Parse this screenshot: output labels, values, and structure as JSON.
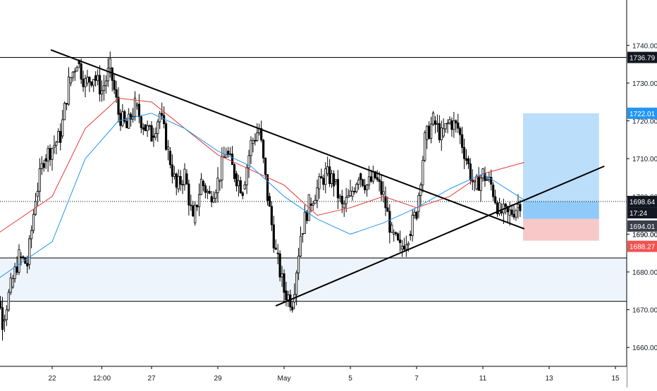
{
  "colors": {
    "up": "#26a69a",
    "candle": "#000000",
    "ma_red": "#e53935",
    "ma_blue": "#2196f3",
    "zone_fill": "#eef4fb",
    "target_fill": "#bbdefb",
    "stop_fill": "#f8c8c8",
    "entry_fill": "#90caf9",
    "price_blue": "#2196f3",
    "price_red": "#ef5350",
    "price_dark": "#131722",
    "price_grey": "#3a3e4a"
  },
  "chart_data": {
    "type": "candlestick",
    "title": "",
    "y_range": [
      1655,
      1752
    ],
    "y_ticks": [
      "1740.00",
      "1730.00",
      "1720.00",
      "1710.00",
      "1700.00",
      "1690.00",
      "1680.00",
      "1670.00",
      "1660.00"
    ],
    "x_ticks": [
      "22",
      "12:00",
      "27",
      "29",
      "May",
      "5",
      "7",
      "11",
      "13",
      "15"
    ],
    "horizontal_levels": [
      1736.79,
      1683.7,
      1672.2
    ],
    "support_zone": [
      1672.2,
      1683.7
    ],
    "dotted_level": 1698.64,
    "trendlines": [
      {
        "name": "descending",
        "from": [
          "Apr 21 23:00",
          1738.8
        ],
        "to": [
          "May 12 06:00",
          1691.4
        ]
      },
      {
        "name": "ascending",
        "from": [
          "Apr 30 18:00",
          1671.0
        ],
        "to": [
          "May 14 16:00",
          1708.0
        ]
      }
    ],
    "position": {
      "type": "long",
      "entry": 1694.01,
      "target": 1722.01,
      "stop": 1688.27,
      "current": 1698.64
    },
    "price_labels": [
      {
        "value": "1736.79",
        "style": "dark"
      },
      {
        "value": "1722.01",
        "style": "blue"
      },
      {
        "value": "1698.64",
        "style": "dark"
      },
      {
        "value": "17:24",
        "style": "dark"
      },
      {
        "value": "1694.01",
        "style": "grey"
      },
      {
        "value": "1688.27",
        "style": "red"
      }
    ],
    "hidden_label": "1690.00",
    "x_range": [
      "Apr 20 00:00",
      "May 15 20:00"
    ],
    "series_close_points": [
      [
        "Apr 20 00:00",
        1693
      ],
      [
        "Apr 20 06:00",
        1680
      ],
      [
        "Apr 20 12:00",
        1667
      ],
      [
        "Apr 20 18:00",
        1676
      ],
      [
        "Apr 21 00:00",
        1684
      ],
      [
        "Apr 21 06:00",
        1682
      ],
      [
        "Apr 21 12:00",
        1700
      ],
      [
        "Apr 21 18:00",
        1710
      ],
      [
        "Apr 22 00:00",
        1713
      ],
      [
        "Apr 22 06:00",
        1716
      ],
      [
        "Apr 22 12:00",
        1730
      ],
      [
        "Apr 22 18:00",
        1736
      ],
      [
        "Apr 23 00:00",
        1730
      ],
      [
        "Apr 23 06:00",
        1732
      ],
      [
        "Apr 23 12:00",
        1728
      ],
      [
        "Apr 23 18:00",
        1734
      ],
      [
        "Apr 24 00:00",
        1722
      ],
      [
        "Apr 24 06:00",
        1718
      ],
      [
        "Apr 24 12:00",
        1724
      ],
      [
        "Apr 24 18:00",
        1719
      ],
      [
        "Apr 27 00:00",
        1716
      ],
      [
        "Apr 27 06:00",
        1722
      ],
      [
        "Apr 27 12:00",
        1712
      ],
      [
        "Apr 27 18:00",
        1702
      ],
      [
        "Apr 28 00:00",
        1706
      ],
      [
        "Apr 28 06:00",
        1693
      ],
      [
        "Apr 28 12:00",
        1704
      ],
      [
        "Apr 28 18:00",
        1700
      ],
      [
        "Apr 29 00:00",
        1704
      ],
      [
        "Apr 29 06:00",
        1712
      ],
      [
        "Apr 29 12:00",
        1706
      ],
      [
        "Apr 29 18:00",
        1702
      ],
      [
        "Apr 30 00:00",
        1714
      ],
      [
        "Apr 30 06:00",
        1718
      ],
      [
        "Apr 30 12:00",
        1700
      ],
      [
        "Apr 30 18:00",
        1685
      ],
      [
        "May 01 00:00",
        1675
      ],
      [
        "May 01 06:00",
        1672
      ],
      [
        "May 01 12:00",
        1690
      ],
      [
        "May 01 18:00",
        1698
      ],
      [
        "May 04 00:00",
        1702
      ],
      [
        "May 04 06:00",
        1706
      ],
      [
        "May 04 12:00",
        1704
      ],
      [
        "May 04 18:00",
        1697
      ],
      [
        "May 05 00:00",
        1700
      ],
      [
        "May 05 06:00",
        1706
      ],
      [
        "May 05 12:00",
        1703
      ],
      [
        "May 05 18:00",
        1705
      ],
      [
        "May 06 00:00",
        1700
      ],
      [
        "May 06 06:00",
        1690
      ],
      [
        "May 06 12:00",
        1686
      ],
      [
        "May 06 18:00",
        1690
      ],
      [
        "May 07 00:00",
        1696
      ],
      [
        "May 07 06:00",
        1715
      ],
      [
        "May 07 12:00",
        1720
      ],
      [
        "May 07 18:00",
        1716
      ],
      [
        "May 08 00:00",
        1720
      ],
      [
        "May 08 06:00",
        1718
      ],
      [
        "May 08 12:00",
        1710
      ],
      [
        "May 08 18:00",
        1702
      ],
      [
        "May 11 00:00",
        1706
      ],
      [
        "May 11 06:00",
        1703
      ],
      [
        "May 11 12:00",
        1696
      ],
      [
        "May 11 18:00",
        1695
      ],
      [
        "May 12 00:00",
        1697
      ],
      [
        "May 12 03:00",
        1698.64
      ]
    ],
    "ma_red_points": [
      [
        "Apr 20 00:00",
        1688
      ],
      [
        "Apr 22 00:00",
        1700
      ],
      [
        "Apr 23 00:00",
        1718
      ],
      [
        "Apr 24 00:00",
        1726
      ],
      [
        "Apr 27 00:00",
        1725
      ],
      [
        "Apr 28 00:00",
        1718
      ],
      [
        "Apr 29 00:00",
        1711
      ],
      [
        "Apr 30 00:00",
        1707
      ],
      [
        "May 01 00:00",
        1703
      ],
      [
        "May 04 00:00",
        1695
      ],
      [
        "May 05 00:00",
        1697
      ],
      [
        "May 06 00:00",
        1700
      ],
      [
        "May 07 00:00",
        1697
      ],
      [
        "May 08 00:00",
        1700
      ],
      [
        "May 11 00:00",
        1706
      ],
      [
        "May 12 06:00",
        1709
      ]
    ],
    "ma_blue_points": [
      [
        "Apr 20 00:00",
        1676
      ],
      [
        "Apr 22 00:00",
        1688
      ],
      [
        "Apr 23 00:00",
        1710
      ],
      [
        "Apr 24 00:00",
        1720
      ],
      [
        "Apr 27 00:00",
        1722
      ],
      [
        "Apr 28 00:00",
        1718
      ],
      [
        "Apr 29 00:00",
        1712
      ],
      [
        "Apr 30 00:00",
        1708
      ],
      [
        "May 01 00:00",
        1700
      ],
      [
        "May 04 00:00",
        1694
      ],
      [
        "May 05 00:00",
        1690
      ],
      [
        "May 06 00:00",
        1693
      ],
      [
        "May 07 00:00",
        1697
      ],
      [
        "May 08 00:00",
        1702
      ],
      [
        "May 11 00:00",
        1706
      ],
      [
        "May 12 06:00",
        1699
      ]
    ]
  }
}
